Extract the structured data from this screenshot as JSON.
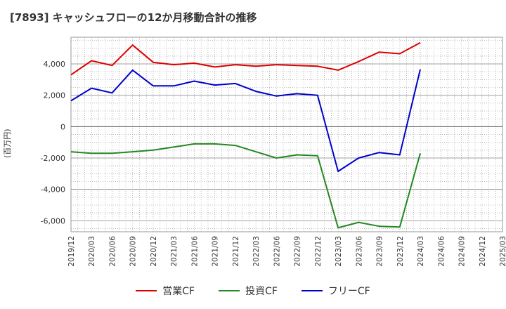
{
  "chart_data": {
    "type": "line",
    "title": "[7893]  キャッシュフローの12か月移動合計の推移",
    "ylabel": "(百万円)",
    "xlabel": "",
    "ylim": [
      -6700,
      5700
    ],
    "yticks": [
      -6000,
      -4000,
      -2000,
      0,
      2000,
      4000
    ],
    "ytick_labels": [
      "-6,000",
      "-4,000",
      "-2,000",
      "0",
      "2,000",
      "4,000"
    ],
    "categories": [
      "2019/12",
      "2020/03",
      "2020/06",
      "2020/09",
      "2020/12",
      "2021/03",
      "2021/06",
      "2021/09",
      "2021/12",
      "2022/03",
      "2022/06",
      "2022/09",
      "2022/12",
      "2023/03",
      "2023/06",
      "2023/09",
      "2023/12",
      "2024/03",
      "2024/06",
      "2024/09",
      "2024/12",
      "2025/03"
    ],
    "series": [
      {
        "name": "営業CF",
        "color": "#dd0000",
        "values": [
          3300,
          4200,
          3900,
          5200,
          4100,
          3950,
          4050,
          3800,
          3950,
          3850,
          3950,
          3900,
          3850,
          3600,
          4150,
          4750,
          4650,
          5350,
          null,
          null,
          null,
          null
        ]
      },
      {
        "name": "投資CF",
        "color": "#228822",
        "values": [
          -1600,
          -1700,
          -1700,
          -1600,
          -1500,
          -1300,
          -1100,
          -1100,
          -1200,
          -1600,
          -2000,
          -1800,
          -1850,
          -6450,
          -6100,
          -6350,
          -6400,
          -1700,
          null,
          null,
          null,
          null
        ]
      },
      {
        "name": "フリーCF",
        "color": "#0000cc",
        "values": [
          1650,
          2450,
          2150,
          3600,
          2600,
          2600,
          2900,
          2650,
          2750,
          2250,
          1950,
          2100,
          2000,
          -2850,
          -2000,
          -1650,
          -1800,
          3650,
          null,
          null,
          null,
          null
        ]
      }
    ],
    "legend": "bottom-center",
    "grid": true
  }
}
